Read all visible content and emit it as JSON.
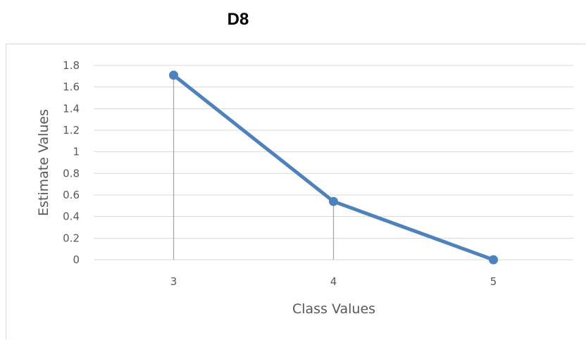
{
  "chart_data": {
    "type": "line",
    "title": "D8",
    "xlabel": "Class Values",
    "ylabel": "Estimate Values",
    "categories": [
      "3",
      "4",
      "5"
    ],
    "series": [
      {
        "values": [
          1.71,
          0.54,
          0.0
        ]
      }
    ],
    "ylim": [
      0,
      1.8
    ],
    "yticks": [
      "0",
      "0.2",
      "0.4",
      "0.6",
      "0.8",
      "1",
      "1.2",
      "1.4",
      "1.6",
      "1.8"
    ],
    "grid": true,
    "drop_lines": true,
    "legend": "none",
    "colors": {
      "line": "#4f81bd",
      "grid": "#d9d9d9",
      "drop_line": "#a6a6a6",
      "text": "#595959"
    }
  }
}
